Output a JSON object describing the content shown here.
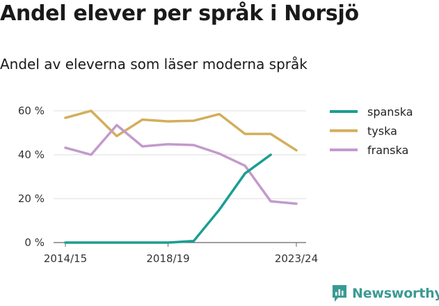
{
  "header": {
    "title": "Andel elever per språk i Norsjö",
    "subtitle": "Andel av eleverna som läser moderna språk"
  },
  "brand": {
    "name": "Newsworthy",
    "color": "#3a9a93",
    "icon": "bar-chart-logo-icon"
  },
  "chart_data": {
    "type": "line",
    "x": [
      "2014/15",
      "2015/16",
      "2016/17",
      "2017/18",
      "2018/19",
      "2019/20",
      "2020/21",
      "2021/22",
      "2022/23",
      "2023/24"
    ],
    "x_tick_labels": [
      "2014/15",
      "2018/19",
      "2023/24"
    ],
    "y_tick_labels": [
      "0 %",
      "20 %",
      "40 %",
      "60 %"
    ],
    "ylim": [
      0,
      62
    ],
    "grid": true,
    "legend_position": "right",
    "series": [
      {
        "name": "spanska",
        "color": "#1a9e92",
        "values": [
          0,
          0,
          0,
          0,
          0,
          0.7,
          15,
          31.5,
          40,
          null
        ]
      },
      {
        "name": "tyska",
        "color": "#d3ae5c",
        "values": [
          56.8,
          60,
          48.5,
          56,
          55.2,
          55.5,
          58.5,
          49.5,
          49.5,
          42
        ]
      },
      {
        "name": "franska",
        "color": "#c39acc",
        "values": [
          43.2,
          40,
          53.5,
          43.8,
          44.8,
          44.4,
          40.5,
          35,
          18.8,
          17.7
        ]
      }
    ]
  }
}
